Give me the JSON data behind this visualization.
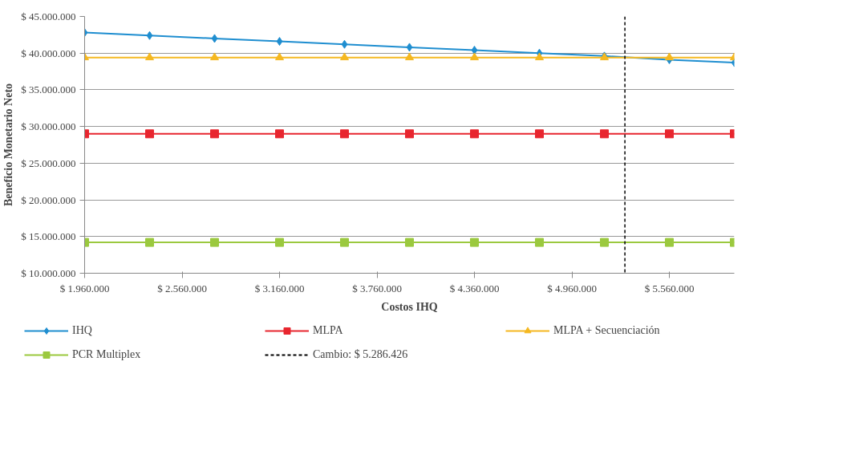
{
  "chart_data": {
    "type": "line",
    "xlabel": "Costos IHQ",
    "ylabel": "Beneficio Monetario Neto",
    "x": [
      1960000,
      2360000,
      2760000,
      3160000,
      3560000,
      3960000,
      4360000,
      4760000,
      5160000,
      5560000,
      5960000
    ],
    "series": [
      {
        "name": "IHQ",
        "color": "#1f8ed0",
        "marker": "diamond",
        "values": [
          42800000,
          42400000,
          42000000,
          41600000,
          41200000,
          40800000,
          40400000,
          40000000,
          39600000,
          39100000,
          38700000
        ]
      },
      {
        "name": "MLPA",
        "color": "#e8262f",
        "marker": "square",
        "values": [
          29000000,
          29000000,
          29000000,
          29000000,
          29000000,
          29000000,
          29000000,
          29000000,
          29000000,
          29000000,
          29000000
        ]
      },
      {
        "name": "MLPA + Secuenciación",
        "color": "#f5b820",
        "marker": "triangle",
        "values": [
          39400000,
          39400000,
          39400000,
          39400000,
          39400000,
          39400000,
          39400000,
          39400000,
          39400000,
          39400000,
          39400000
        ]
      },
      {
        "name": "PCR Multiplex",
        "color": "#9bc93f",
        "marker": "square",
        "values": [
          14200000,
          14200000,
          14200000,
          14200000,
          14200000,
          14200000,
          14200000,
          14200000,
          14200000,
          14200000,
          14200000
        ]
      }
    ],
    "ref_lines": [
      {
        "axis": "x",
        "value": 5286426,
        "label": "Cambio: $ 5.286.426",
        "color": "#000000",
        "line_style": "dashed"
      }
    ],
    "xlim": [
      1960000,
      5960000
    ],
    "ylim": [
      10000000,
      45000000
    ],
    "xticks": [
      {
        "value": 1960000,
        "label": "$ 1.960.000"
      },
      {
        "value": 2560000,
        "label": "$ 2.560.000"
      },
      {
        "value": 3160000,
        "label": "$ 3.160.000"
      },
      {
        "value": 3760000,
        "label": "$ 3.760.000"
      },
      {
        "value": 4360000,
        "label": "$ 4.360.000"
      },
      {
        "value": 4960000,
        "label": "$ 4.960.000"
      },
      {
        "value": 5560000,
        "label": "$ 5.560.000"
      }
    ],
    "yticks": [
      {
        "value": 10000000,
        "label": "$ 10.000.000"
      },
      {
        "value": 15000000,
        "label": "$ 15.000.000"
      },
      {
        "value": 20000000,
        "label": "$ 20.000.000"
      },
      {
        "value": 25000000,
        "label": "$ 25.000.000"
      },
      {
        "value": 30000000,
        "label": "$ 30.000.000"
      },
      {
        "value": 35000000,
        "label": "$ 35.000.000"
      },
      {
        "value": 40000000,
        "label": "$ 40.000.000"
      },
      {
        "value": 45000000,
        "label": "$ 45.000.000"
      }
    ],
    "grid": "y",
    "legend": "bottom",
    "line_style": "solid"
  }
}
